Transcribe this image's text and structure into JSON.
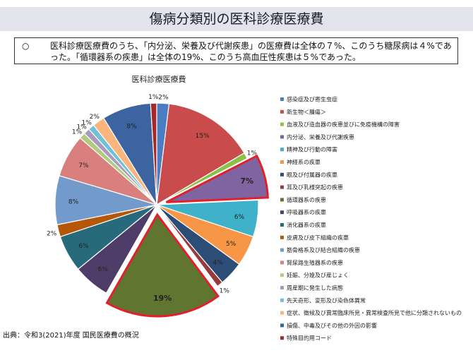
{
  "header": {
    "title": "傷病分類別の医科診療医療費"
  },
  "summary": {
    "mark": "○",
    "text": "医科診療医療費のうち、「内分泌、栄養及び代謝疾患」の医療費は全体の７%、このうち糖尿病は４%であった。「循環器系の疾患」は全体の19%、このうち高血圧性疾患は５%であった。"
  },
  "footer": {
    "source": "出典：令和3(2021)年度 国民医療費の概況"
  },
  "chart_data": {
    "type": "pie",
    "title": "医科診療医療費",
    "start_angle_deg": 0,
    "direction": "clockwise",
    "slices": [
      {
        "name": "感染症及び寄生虫症",
        "value": 2,
        "label": "2%",
        "color": "#4a7dc4"
      },
      {
        "name": "新生物＜腫瘍＞",
        "value": 15,
        "label": "15%",
        "color": "#c94b4b"
      },
      {
        "name": "血液及び造血器の疾患並びに免疫機構の障害",
        "value": 1,
        "label": "1%",
        "color": "#8cc04a"
      },
      {
        "name": "内分泌、栄養及び代謝疾患",
        "value": 7,
        "label": "7%",
        "color": "#8064a2",
        "exploded": true,
        "label_bold": true
      },
      {
        "name": "精神及び行動の障害",
        "value": 6,
        "label": "6%",
        "color": "#3fb1c8"
      },
      {
        "name": "神経系の疾患",
        "value": 5,
        "label": "5%",
        "color": "#f79646"
      },
      {
        "name": "眼及び付属器の疾患",
        "value": 4,
        "label": "4%",
        "color": "#2c4d75"
      },
      {
        "name": "耳及び乳様突起の疾患",
        "value": 1,
        "label": "1%",
        "color": "#963c3c"
      },
      {
        "name": "循環器系の疾患",
        "value": 19,
        "label": "19%",
        "color": "#5f7530",
        "exploded": true,
        "label_bold": true
      },
      {
        "name": "呼吸器系の疾患",
        "value": 6,
        "label": "6%",
        "color": "#4e3d69"
      },
      {
        "name": "消化器系の疾患",
        "value": 6,
        "label": "6%",
        "color": "#276a7c"
      },
      {
        "name": "皮膚及び皮下組織の疾患",
        "value": 2,
        "label": "2%",
        "color": "#b65708"
      },
      {
        "name": "筋骨格系及び結合組織の疾患",
        "value": 8,
        "label": "8%",
        "color": "#729aca"
      },
      {
        "name": "腎尿路生殖器系の疾患",
        "value": 7,
        "label": "7%",
        "color": "#d9807e"
      },
      {
        "name": "妊娠、分娩及び産じょく",
        "value": 1,
        "label": "1%",
        "color": "#b1cc82"
      },
      {
        "name": "周産期に発生した病態",
        "value": 1,
        "label": "1%",
        "color": "#a99bbd"
      },
      {
        "name": "先天奇形、変形及び染色体異常",
        "value": 1,
        "label": "1%",
        "color": "#6fc1d6"
      },
      {
        "name": "症状、徴候及び異常臨床所見・異常検査所見で他に分類されないもの",
        "value": 2,
        "label": "2%",
        "color": "#f9b57d"
      },
      {
        "name": "損傷、中毒及びその他の外因の影響",
        "value": 8,
        "label": "8%",
        "color": "#3b64a0"
      },
      {
        "name": "特殊目的用コード",
        "value": 1,
        "label": "1%",
        "color": "#a42a2a"
      }
    ],
    "legend_position": "right"
  }
}
